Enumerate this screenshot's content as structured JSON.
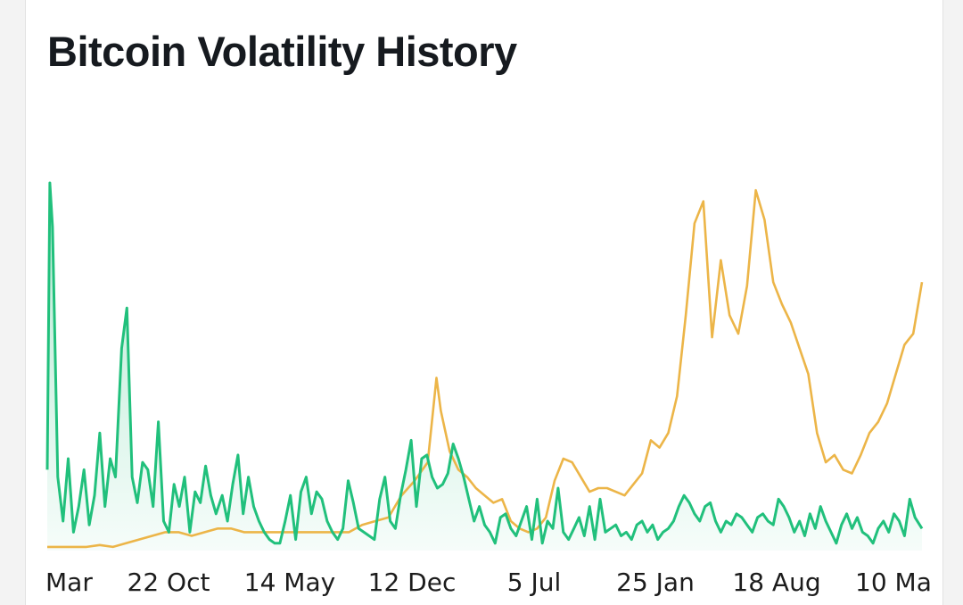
{
  "header": {
    "title": "Bitcoin Volatility History"
  },
  "chart_data": {
    "type": "line",
    "title": "Bitcoin Volatility History",
    "xlabel": "",
    "ylabel": "",
    "x_tick_labels": [
      "Mar",
      "22 Oct",
      "14 May",
      "12 Dec",
      "5 Jul",
      "25 Jan",
      "18 Aug",
      "10 Ma"
    ],
    "x_range": [
      0,
      100
    ],
    "ylim": [
      0,
      100
    ],
    "grid": false,
    "series": [
      {
        "color": "#21c07c",
        "fill": true,
        "points": [
          [
            0,
            22
          ],
          [
            0.3,
            100
          ],
          [
            0.6,
            88
          ],
          [
            1.2,
            20
          ],
          [
            1.8,
            8
          ],
          [
            2.4,
            25
          ],
          [
            3.0,
            5
          ],
          [
            3.6,
            12
          ],
          [
            4.2,
            22
          ],
          [
            4.8,
            7
          ],
          [
            5.4,
            15
          ],
          [
            6.0,
            32
          ],
          [
            6.6,
            12
          ],
          [
            7.2,
            25
          ],
          [
            7.8,
            20
          ],
          [
            8.5,
            55
          ],
          [
            9.1,
            66
          ],
          [
            9.7,
            20
          ],
          [
            10.3,
            13
          ],
          [
            10.9,
            24
          ],
          [
            11.5,
            22
          ],
          [
            12.1,
            12
          ],
          [
            12.7,
            35
          ],
          [
            13.3,
            8
          ],
          [
            13.9,
            5
          ],
          [
            14.5,
            18
          ],
          [
            15.1,
            12
          ],
          [
            15.7,
            20
          ],
          [
            16.3,
            5
          ],
          [
            16.9,
            16
          ],
          [
            17.5,
            13
          ],
          [
            18.1,
            23
          ],
          [
            18.7,
            15
          ],
          [
            19.3,
            10
          ],
          [
            20.0,
            15
          ],
          [
            20.6,
            8
          ],
          [
            21.2,
            18
          ],
          [
            21.8,
            26
          ],
          [
            22.4,
            10
          ],
          [
            23.0,
            20
          ],
          [
            23.6,
            12
          ],
          [
            24.2,
            8
          ],
          [
            24.8,
            5
          ],
          [
            25.4,
            3
          ],
          [
            26.0,
            2
          ],
          [
            26.6,
            2
          ],
          [
            27.2,
            8
          ],
          [
            27.8,
            15
          ],
          [
            28.4,
            3
          ],
          [
            29.0,
            16
          ],
          [
            29.6,
            20
          ],
          [
            30.2,
            10
          ],
          [
            30.8,
            16
          ],
          [
            31.4,
            14
          ],
          [
            32.0,
            8
          ],
          [
            32.6,
            5
          ],
          [
            33.2,
            3
          ],
          [
            33.8,
            6
          ],
          [
            34.4,
            19
          ],
          [
            35.0,
            13
          ],
          [
            35.6,
            6
          ],
          [
            36.2,
            5
          ],
          [
            36.8,
            4
          ],
          [
            37.4,
            3
          ],
          [
            38.0,
            14
          ],
          [
            38.6,
            20
          ],
          [
            39.2,
            8
          ],
          [
            39.8,
            6
          ],
          [
            40.4,
            15
          ],
          [
            41.0,
            22
          ],
          [
            41.6,
            30
          ],
          [
            42.2,
            12
          ],
          [
            42.8,
            25
          ],
          [
            43.4,
            26
          ],
          [
            44.0,
            20
          ],
          [
            44.6,
            17
          ],
          [
            45.2,
            18
          ],
          [
            45.8,
            21
          ],
          [
            46.4,
            29
          ],
          [
            47.0,
            25
          ],
          [
            47.6,
            20
          ],
          [
            48.2,
            14
          ],
          [
            48.8,
            8
          ],
          [
            49.4,
            12
          ],
          [
            50.0,
            7
          ],
          [
            50.6,
            5
          ],
          [
            51.2,
            2
          ],
          [
            51.8,
            9
          ],
          [
            52.4,
            10
          ],
          [
            53.0,
            6
          ],
          [
            53.6,
            4
          ],
          [
            54.2,
            8
          ],
          [
            54.8,
            12
          ],
          [
            55.4,
            3
          ],
          [
            56.0,
            14
          ],
          [
            56.6,
            2
          ],
          [
            57.2,
            8
          ],
          [
            57.8,
            6
          ],
          [
            58.4,
            17
          ],
          [
            59.0,
            5
          ],
          [
            59.6,
            3
          ],
          [
            60.2,
            6
          ],
          [
            60.8,
            9
          ],
          [
            61.4,
            4
          ],
          [
            62.0,
            12
          ],
          [
            62.6,
            3
          ],
          [
            63.2,
            14
          ],
          [
            63.8,
            5
          ],
          [
            64.4,
            6
          ],
          [
            65.0,
            7
          ],
          [
            65.6,
            4
          ],
          [
            66.2,
            5
          ],
          [
            66.8,
            3
          ],
          [
            67.4,
            7
          ],
          [
            68.0,
            8
          ],
          [
            68.6,
            5
          ],
          [
            69.2,
            7
          ],
          [
            69.8,
            3
          ],
          [
            70.4,
            5
          ],
          [
            71.0,
            6
          ],
          [
            71.6,
            8
          ],
          [
            72.2,
            12
          ],
          [
            72.8,
            15
          ],
          [
            73.4,
            13
          ],
          [
            74.0,
            10
          ],
          [
            74.6,
            8
          ],
          [
            75.2,
            12
          ],
          [
            75.8,
            13
          ],
          [
            76.4,
            8
          ],
          [
            77.0,
            5
          ],
          [
            77.6,
            8
          ],
          [
            78.2,
            7
          ],
          [
            78.8,
            10
          ],
          [
            79.4,
            9
          ],
          [
            80.0,
            7
          ],
          [
            80.6,
            5
          ],
          [
            81.2,
            9
          ],
          [
            81.8,
            10
          ],
          [
            82.4,
            8
          ],
          [
            83.0,
            7
          ],
          [
            83.6,
            14
          ],
          [
            84.2,
            12
          ],
          [
            84.8,
            9
          ],
          [
            85.4,
            5
          ],
          [
            86.0,
            8
          ],
          [
            86.6,
            4
          ],
          [
            87.2,
            10
          ],
          [
            87.8,
            6
          ],
          [
            88.4,
            12
          ],
          [
            89.0,
            8
          ],
          [
            89.6,
            5
          ],
          [
            90.2,
            2
          ],
          [
            90.8,
            7
          ],
          [
            91.4,
            10
          ],
          [
            92.0,
            6
          ],
          [
            92.6,
            9
          ],
          [
            93.2,
            5
          ],
          [
            93.8,
            4
          ],
          [
            94.4,
            2
          ],
          [
            95.0,
            6
          ],
          [
            95.6,
            8
          ],
          [
            96.2,
            5
          ],
          [
            96.8,
            10
          ],
          [
            97.4,
            8
          ],
          [
            98.0,
            4
          ],
          [
            98.6,
            14
          ],
          [
            99.2,
            9
          ],
          [
            100,
            6
          ]
        ]
      },
      {
        "color": "#ecb548",
        "fill": false,
        "points": [
          [
            0,
            1
          ],
          [
            1.5,
            1
          ],
          [
            3,
            1
          ],
          [
            4.5,
            1
          ],
          [
            6,
            1.5
          ],
          [
            7.5,
            1
          ],
          [
            9,
            2
          ],
          [
            10.5,
            3
          ],
          [
            12,
            4
          ],
          [
            13.5,
            5
          ],
          [
            15,
            5
          ],
          [
            16.5,
            4
          ],
          [
            18,
            5
          ],
          [
            19.5,
            6
          ],
          [
            21,
            6
          ],
          [
            22.5,
            5
          ],
          [
            24,
            5
          ],
          [
            25.5,
            5
          ],
          [
            27,
            5
          ],
          [
            28.5,
            5
          ],
          [
            30,
            5
          ],
          [
            31.5,
            5
          ],
          [
            33,
            5
          ],
          [
            34.5,
            5
          ],
          [
            36,
            7
          ],
          [
            37.5,
            8
          ],
          [
            39,
            9
          ],
          [
            40.5,
            15
          ],
          [
            42,
            19
          ],
          [
            43.5,
            24
          ],
          [
            44.5,
            47
          ],
          [
            45,
            38
          ],
          [
            46,
            27
          ],
          [
            47,
            22
          ],
          [
            48,
            20
          ],
          [
            49,
            17
          ],
          [
            50,
            15
          ],
          [
            51,
            13
          ],
          [
            52,
            14
          ],
          [
            53,
            8
          ],
          [
            54,
            6
          ],
          [
            55,
            5
          ],
          [
            56,
            6
          ],
          [
            57,
            9
          ],
          [
            58,
            19
          ],
          [
            59,
            25
          ],
          [
            60,
            24
          ],
          [
            61,
            20
          ],
          [
            62,
            16
          ],
          [
            63,
            17
          ],
          [
            64,
            17
          ],
          [
            65,
            16
          ],
          [
            66,
            15
          ],
          [
            67,
            18
          ],
          [
            68,
            21
          ],
          [
            69,
            30
          ],
          [
            70,
            28
          ],
          [
            71,
            32
          ],
          [
            72,
            42
          ],
          [
            73,
            64
          ],
          [
            74,
            89
          ],
          [
            75,
            95
          ],
          [
            76,
            58
          ],
          [
            77,
            79
          ],
          [
            78,
            64
          ],
          [
            79,
            59
          ],
          [
            80,
            72
          ],
          [
            81,
            98
          ],
          [
            82,
            90
          ],
          [
            83,
            73
          ],
          [
            84,
            67
          ],
          [
            85,
            62
          ],
          [
            86,
            55
          ],
          [
            87,
            48
          ],
          [
            88,
            32
          ],
          [
            89,
            24
          ],
          [
            90,
            26
          ],
          [
            91,
            22
          ],
          [
            92,
            21
          ],
          [
            93,
            26
          ],
          [
            94,
            32
          ],
          [
            95,
            35
          ],
          [
            96,
            40
          ],
          [
            97,
            48
          ],
          [
            98,
            56
          ],
          [
            99,
            59
          ],
          [
            100,
            73
          ]
        ]
      }
    ]
  }
}
